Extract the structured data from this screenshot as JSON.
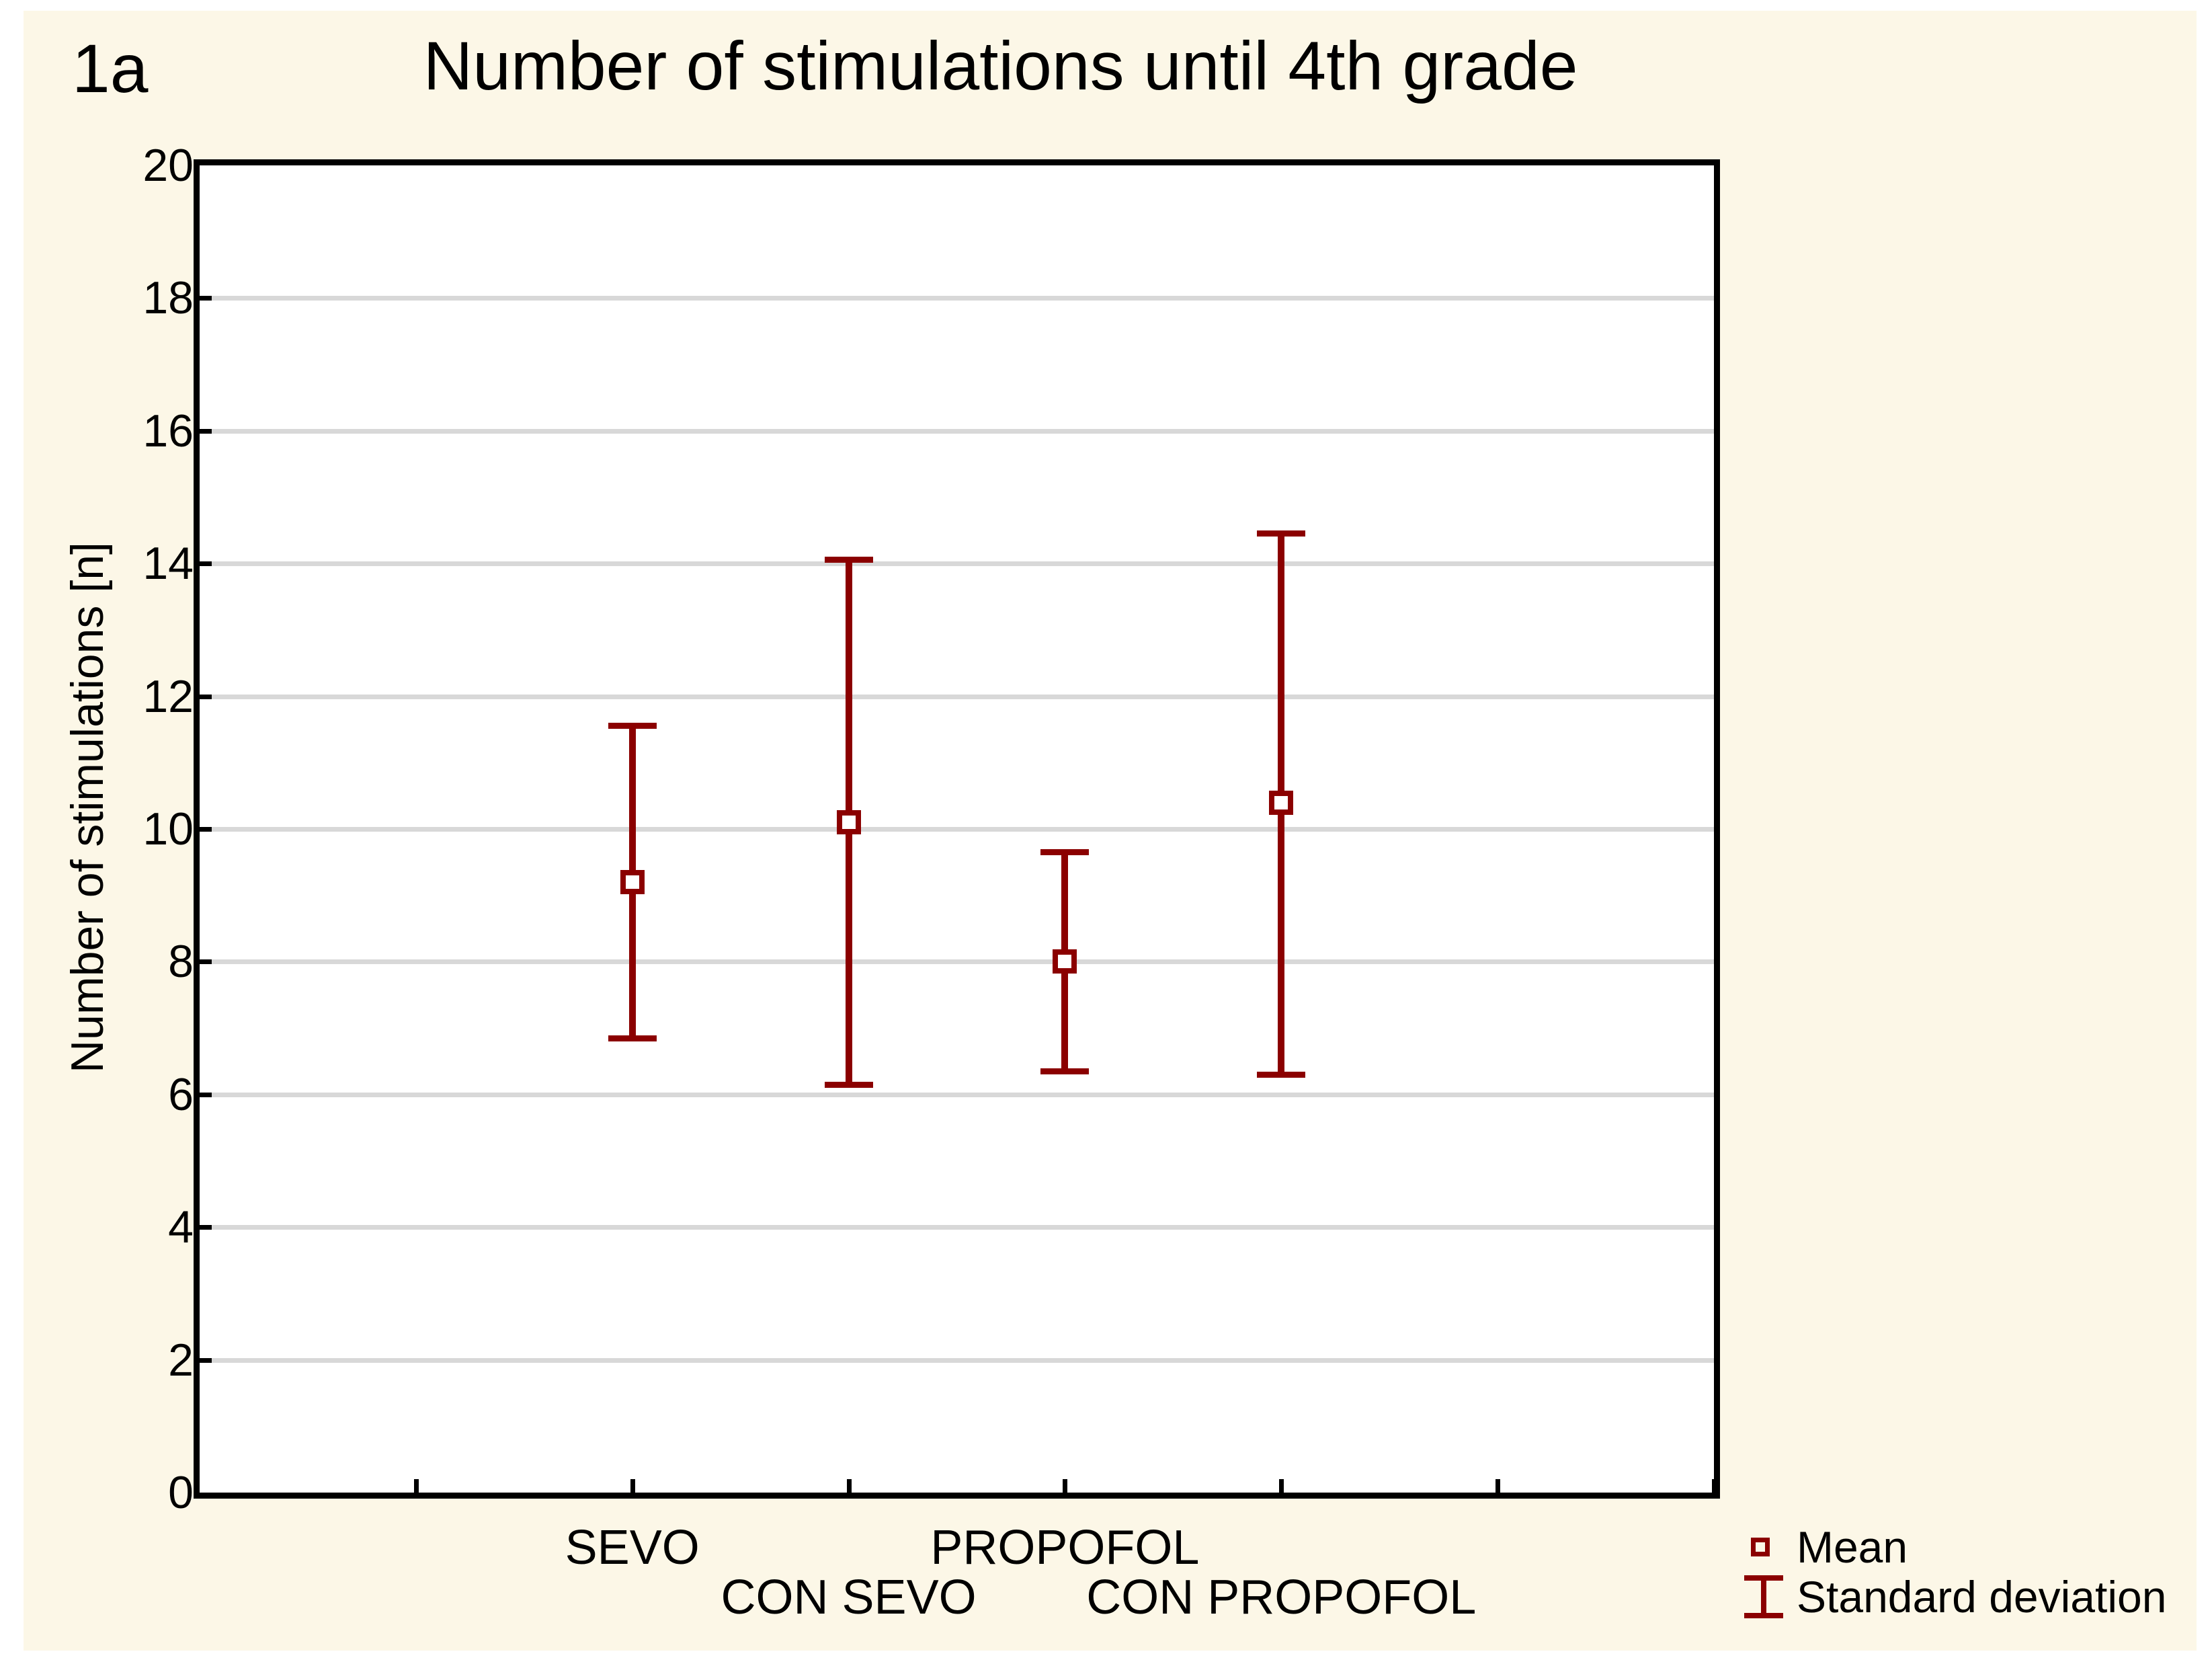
{
  "figure_label": "1a",
  "title": "Number of stimulations until 4th grade",
  "legend": {
    "mean_label": "Mean",
    "sd_label": "Standard deviation"
  },
  "colors": {
    "panel_background": "#FCF7E7",
    "plot_background": "#FFFFFF",
    "series": "#8B0000",
    "gridline": "#D8D8D8",
    "frame": "#000000",
    "text": "#000000"
  },
  "chart_data": {
    "type": "errorbar",
    "title": "Number of stimulations until 4th grade",
    "xlabel": "",
    "ylabel": "Number of stimulations [n]",
    "ylim": [
      0,
      20
    ],
    "yticks": [
      0,
      2,
      4,
      6,
      8,
      10,
      12,
      14,
      16,
      18,
      20
    ],
    "grid": true,
    "legend_position": "bottom-right",
    "categories": [
      "SEVO",
      "CON SEVO",
      "PROPOFOL",
      "CON PROPOFOL"
    ],
    "series": [
      {
        "name": "Mean ± Standard deviation",
        "means": [
          9.2,
          10.1,
          8.0,
          10.4
        ],
        "sd": [
          2.4,
          4.0,
          1.7,
          4.1
        ],
        "upper": [
          11.6,
          14.1,
          9.7,
          14.5
        ],
        "lower": [
          6.8,
          6.1,
          6.3,
          6.25
        ]
      }
    ],
    "x_total_ticks": 7,
    "category_tick_positions": [
      2,
      3,
      4,
      5
    ],
    "category_label_rows": [
      0,
      1,
      0,
      1
    ]
  }
}
